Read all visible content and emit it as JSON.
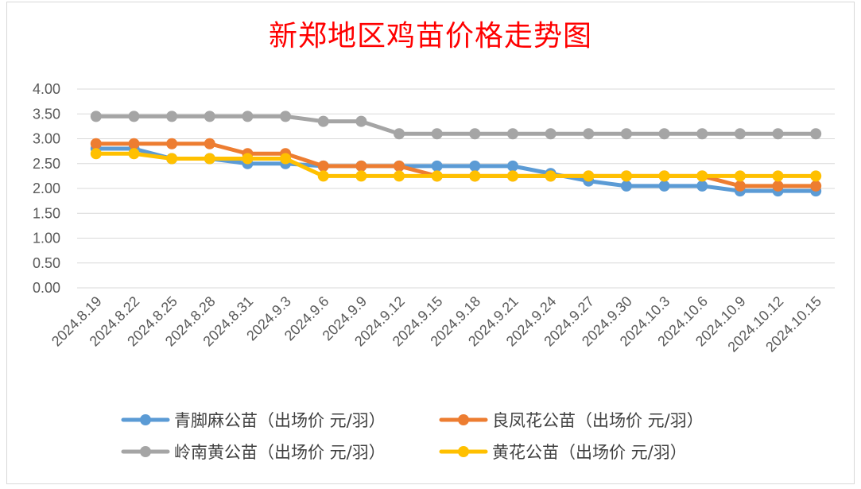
{
  "chart_data": {
    "type": "line",
    "title": "新郑地区鸡苗价格走势图",
    "xlabel": "",
    "ylabel": "",
    "ylim": [
      0,
      4
    ],
    "yticks": [
      "0.00",
      "0.50",
      "1.00",
      "1.50",
      "2.00",
      "2.50",
      "3.00",
      "3.50",
      "4.00"
    ],
    "grid": true,
    "legend_position": "bottom",
    "categories": [
      "2024.8.19",
      "2024.8.22",
      "2024.8.25",
      "2024.8.28",
      "2024.8.31",
      "2024.9.3",
      "2024.9.6",
      "2024.9.9",
      "2024.9.12",
      "2024.9.15",
      "2024.9.18",
      "2024.9.21",
      "2024.9.24",
      "2024.9.27",
      "2024.9.30",
      "2024.10.3",
      "2024.10.6",
      "2024.10.9",
      "2024.10.12",
      "2024.10.15"
    ],
    "series": [
      {
        "name": "青脚麻公苗（出场价 元/羽）",
        "color": "#5b9bd5",
        "values": [
          2.8,
          2.8,
          2.6,
          2.6,
          2.5,
          2.5,
          2.45,
          2.45,
          2.45,
          2.45,
          2.45,
          2.45,
          2.3,
          2.15,
          2.05,
          2.05,
          2.05,
          1.95,
          1.95,
          1.95
        ]
      },
      {
        "name": "良凤花公苗（出场价 元/羽）",
        "color": "#ed7d31",
        "values": [
          2.9,
          2.9,
          2.9,
          2.9,
          2.7,
          2.7,
          2.45,
          2.45,
          2.45,
          2.25,
          2.25,
          2.25,
          2.25,
          2.25,
          2.25,
          2.25,
          2.25,
          2.05,
          2.05,
          2.05
        ]
      },
      {
        "name": "岭南黄公苗（出场价 元/羽）",
        "color": "#a5a5a5",
        "values": [
          3.45,
          3.45,
          3.45,
          3.45,
          3.45,
          3.45,
          3.35,
          3.35,
          3.1,
          3.1,
          3.1,
          3.1,
          3.1,
          3.1,
          3.1,
          3.1,
          3.1,
          3.1,
          3.1,
          3.1
        ]
      },
      {
        "name": "黄花公苗（出场价 元/羽）",
        "color": "#ffc000",
        "values": [
          2.7,
          2.7,
          2.6,
          2.6,
          2.6,
          2.6,
          2.25,
          2.25,
          2.25,
          2.25,
          2.25,
          2.25,
          2.25,
          2.25,
          2.25,
          2.25,
          2.25,
          2.25,
          2.25,
          2.25
        ]
      }
    ]
  }
}
